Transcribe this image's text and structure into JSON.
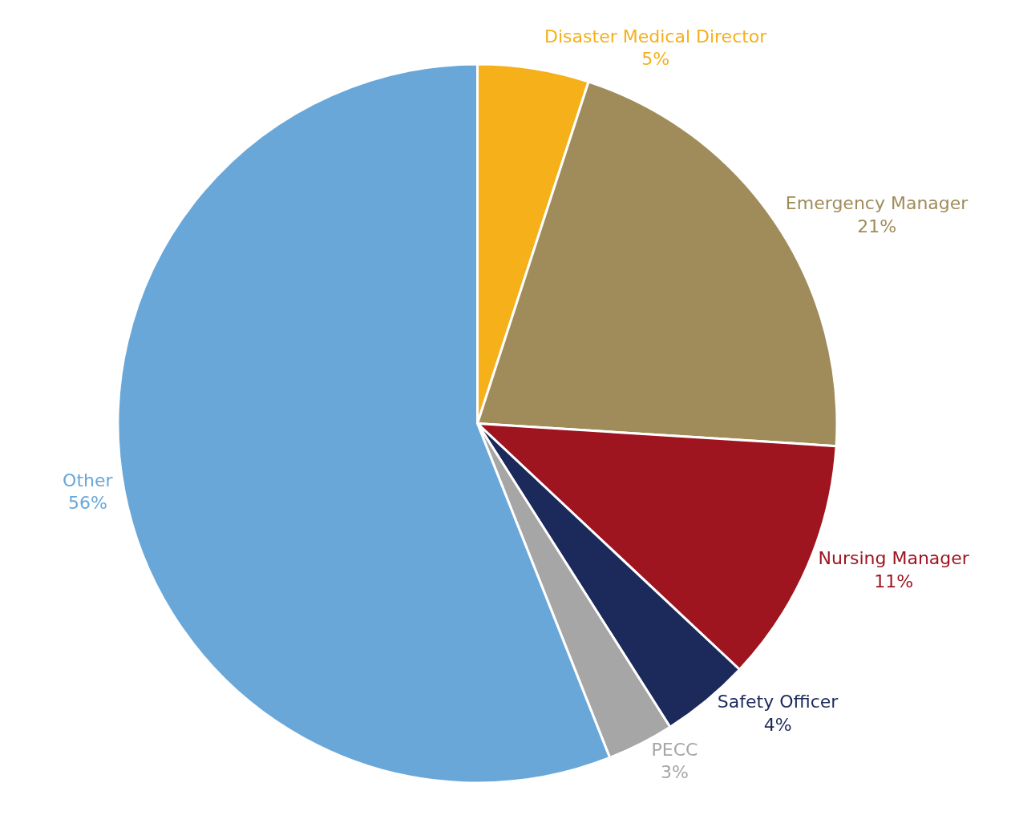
{
  "chart_data": {
    "type": "pie",
    "categories": [
      "Disaster Medical Director",
      "Emergency Manager",
      "Nursing Manager",
      "Safety Officer",
      "PECC",
      "Other"
    ],
    "values": [
      5,
      21,
      11,
      4,
      3,
      56
    ],
    "value_labels": [
      "5%",
      "21%",
      "11%",
      "4%",
      "3%",
      "56%"
    ],
    "colors": [
      "#f5b01a",
      "#a08c5a",
      "#9e1520",
      "#1b2a5a",
      "#a6a6a6",
      "#69a7d9"
    ],
    "legend": false
  }
}
